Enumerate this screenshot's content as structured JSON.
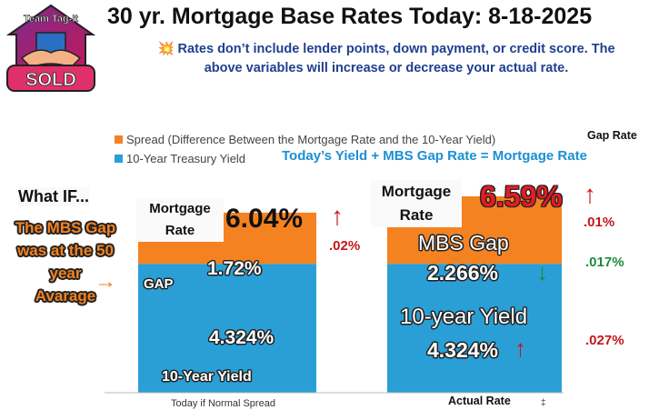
{
  "header": {
    "title": "30 yr. Mortgage Base Rates Today: 8-18-2025",
    "disclaimer_icon": "💥",
    "disclaimer_line1": "Rates don’t include lender points, down payment, or credit score. The",
    "disclaimer_line2": "above variables will increase or decrease your actual rate."
  },
  "logo": {
    "text_top": "Team Tag-It",
    "text_bottom": "SOLD",
    "icon": "handshake-house-icon"
  },
  "colors": {
    "spread": "#f58220",
    "yield": "#2a9fd6",
    "title_blue": "#1f3f8f",
    "formula_blue": "#1b8fd3",
    "red": "#c4161c",
    "green": "#1e8a3a"
  },
  "annotations": {
    "gap_rate_label": "Gap Rate",
    "formula": "Today’s  Yield +  MBS Gap Rate = Mortgage Rate",
    "what_if": "What IF...",
    "mbs_gap_line1": "The MBS Gap",
    "mbs_gap_line2": "was at the 50",
    "mbs_gap_line3": "year",
    "mbs_gap_line4": "Avarage",
    "arrow_right": "→",
    "left_mortgage_label1": "Mortgage",
    "left_mortgage_label2": "Rate",
    "left_rate": "6.04%",
    "left_rate_arrow": "↑",
    "left_change": ".02%",
    "gap_tag": "GAP",
    "left_gap_value": "1.72%",
    "left_yield_value": "4.324%",
    "left_yield_label": "10-Year Yield",
    "right_mortgage_label1": "Mortgage",
    "right_mortgage_label2": "Rate",
    "right_rate": "6.59%",
    "right_rate_arrow": "↑",
    "right_rate_change": ".01%",
    "mbs_gap_label": "MBS Gap",
    "right_gap_value": "2.266%",
    "gap_arrow": "↓",
    "gap_change": ".017%",
    "yield_label": "10-year Yield",
    "right_yield_value": "4.324%",
    "yield_arrow": "↑",
    "yield_change": ".027%"
  },
  "chart_data": {
    "type": "bar",
    "stacked": true,
    "categories": [
      "Today if Normal Spread",
      "Actual Rate"
    ],
    "series": [
      {
        "name": "10-Year Treasury Yield",
        "values": [
          4.324,
          4.324
        ]
      },
      {
        "name": "Spread (Difference Between the Mortgage Rate and the 10-Year Yield)",
        "values": [
          1.72,
          2.266
        ]
      }
    ],
    "totals": [
      6.04,
      6.59
    ],
    "legend": "top-left",
    "ylim": [
      0,
      7.2
    ],
    "grid": false,
    "tick_mark": "‡"
  }
}
